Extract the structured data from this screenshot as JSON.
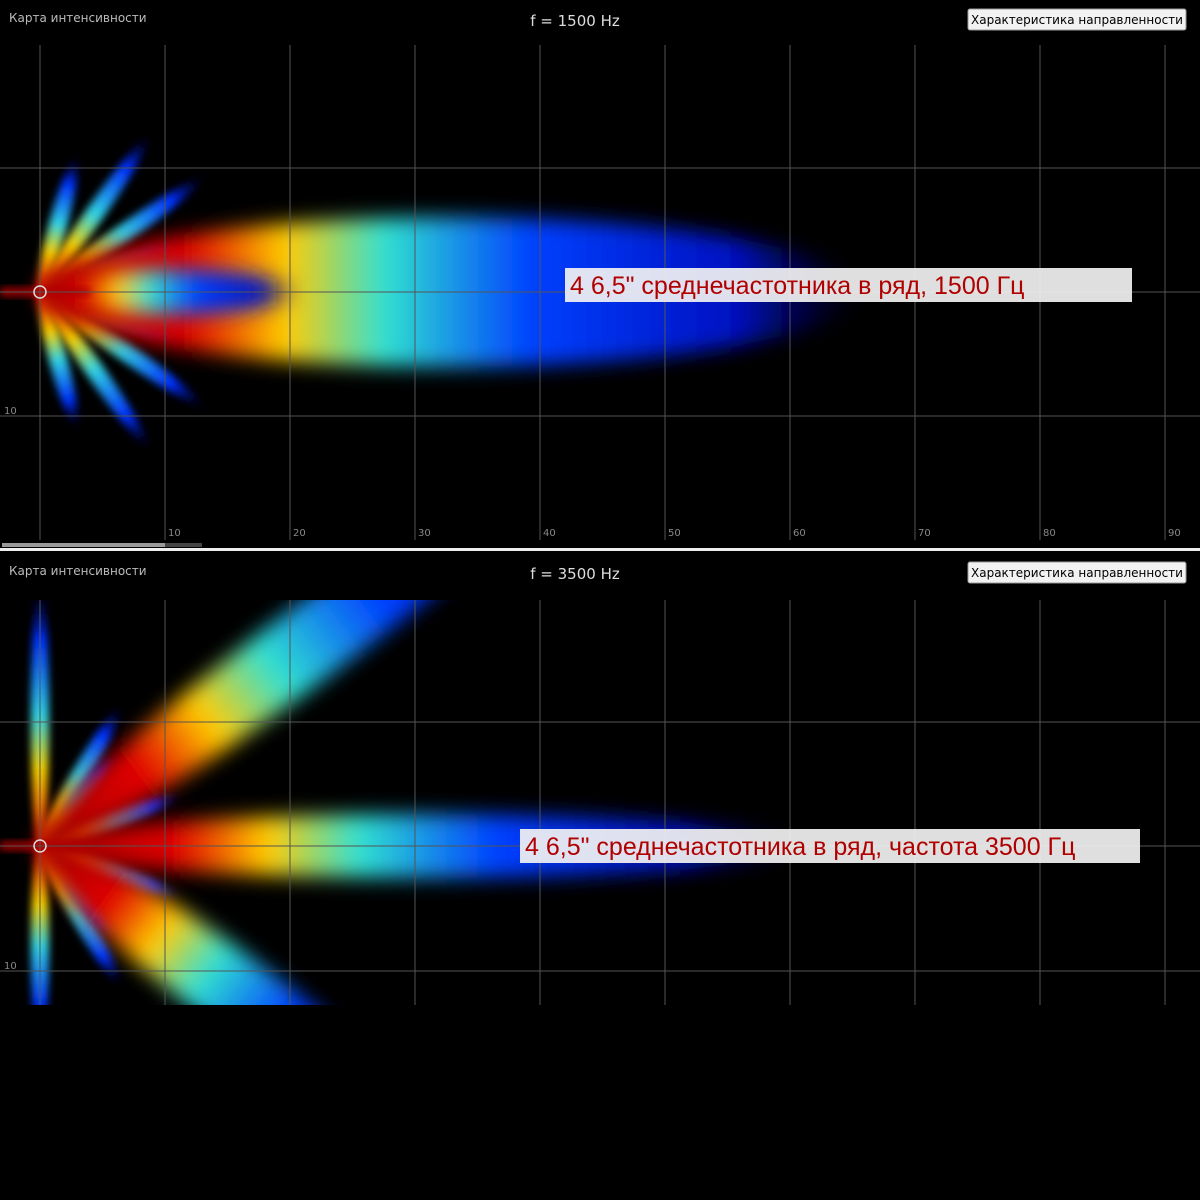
{
  "panels": [
    {
      "label": "Карта интенсивности",
      "frequency": "f = 1500 Hz",
      "button": "Характеристика направленности",
      "annotation": "4 6,5\" среднечастотника в ряд, 1500 Гц",
      "x_ticks": [
        "10",
        "20",
        "30",
        "40",
        "50",
        "60",
        "70",
        "80",
        "90"
      ],
      "y_ticks": [
        "10"
      ]
    },
    {
      "label": "Карта интенсивности",
      "frequency": "f = 3500 Hz",
      "button": "Характеристика направленности",
      "annotation": "4 6,5\" среднечастотника в ряд, частота 3500 Гц",
      "x_ticks": [],
      "y_ticks": [
        "10"
      ]
    }
  ]
}
